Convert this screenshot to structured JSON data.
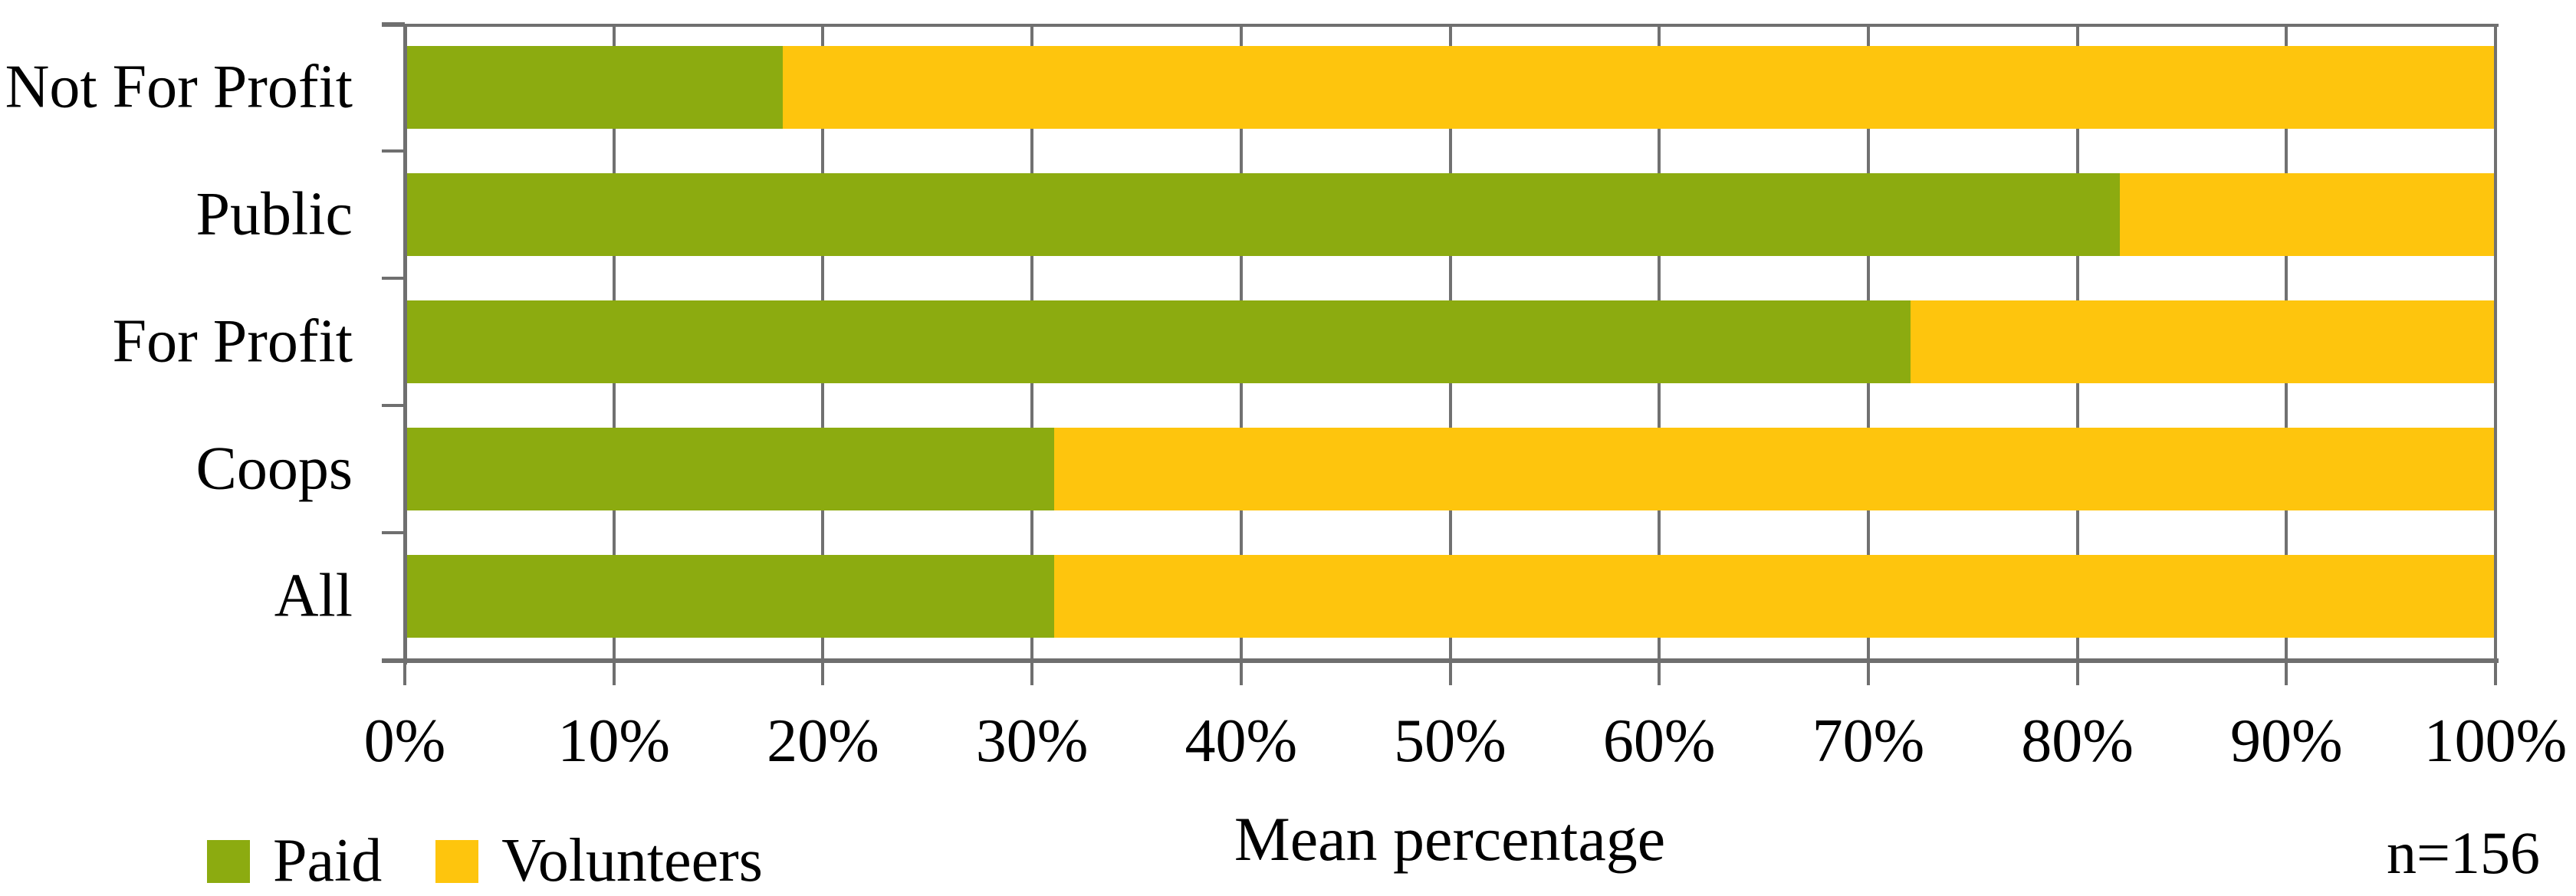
{
  "chart_data": {
    "type": "bar",
    "orientation": "horizontal",
    "stacked": true,
    "categories": [
      "Not For Profit",
      "Public",
      "For Profit",
      "Coops",
      "All"
    ],
    "series": [
      {
        "name": "Paid",
        "color": "#8cab10",
        "values": [
          18,
          82,
          72,
          31,
          31
        ]
      },
      {
        "name": "Volunteers",
        "color": "#fec50d",
        "values": [
          82,
          18,
          28,
          69,
          69
        ]
      }
    ],
    "x_axis": {
      "label": "Mean percentage",
      "min": 0,
      "max": 100,
      "ticks": [
        "0%",
        "10%",
        "20%",
        "30%",
        "40%",
        "50%",
        "60%",
        "70%",
        "80%",
        "90%",
        "100%"
      ]
    },
    "y_axis": {
      "label": ""
    },
    "grid": true,
    "legend_position": "bottom-left",
    "annotation": "n=156",
    "colors": {
      "paid": "#8cab10",
      "volunteers": "#fec50d",
      "axis": "#6f6f6f",
      "gridline": "#717171",
      "text": "#000000",
      "background": "#ffffff"
    }
  }
}
